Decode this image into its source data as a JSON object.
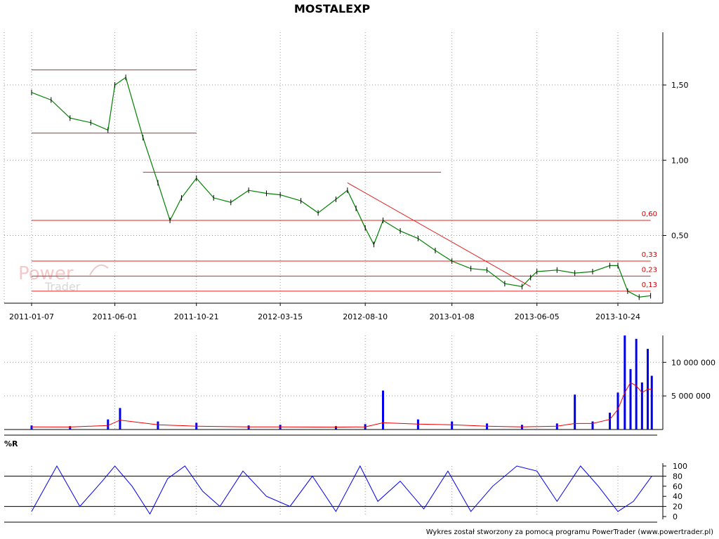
{
  "title": "MOSTALEXP",
  "watermark": {
    "line1": "Power",
    "line2": "Trader"
  },
  "footer": "Wykres został stworzony za pomocą programu PowerTrader (www.powertrader.pl)",
  "colors": {
    "price_line": "#000000",
    "price_ma": "#008000",
    "level_line": "#e02020",
    "volume_bar": "#0000ee",
    "volume_ma": "#ee0000",
    "oscillator": "#0000ee",
    "grid": "#999999"
  },
  "chart_data": [
    {
      "type": "line",
      "name_panel": "price",
      "title": "MOSTALEXP",
      "x_tick_labels": [
        "2011-01-07",
        "2011-06-01",
        "2011-10-21",
        "2012-03-15",
        "2012-08-10",
        "2013-01-08",
        "2013-06-05",
        "2013-10-24"
      ],
      "y_tick_values": [
        0.5,
        1.0,
        1.5
      ],
      "y_tick_labels": [
        "0,50",
        "1,00",
        "1,50"
      ],
      "ylim": [
        0.05,
        1.85
      ],
      "grid": true,
      "x": [
        "2011-01-07",
        "2011-02-10",
        "2011-03-15",
        "2011-04-20",
        "2011-05-20",
        "2011-06-01",
        "2011-06-20",
        "2011-07-20",
        "2011-08-15",
        "2011-09-05",
        "2011-09-25",
        "2011-10-21",
        "2011-11-20",
        "2011-12-20",
        "2012-01-20",
        "2012-02-20",
        "2012-03-15",
        "2012-04-20",
        "2012-05-20",
        "2012-06-20",
        "2012-07-10",
        "2012-07-25",
        "2012-08-10",
        "2012-08-25",
        "2012-09-10",
        "2012-10-10",
        "2012-11-10",
        "2012-12-10",
        "2013-01-08",
        "2013-02-10",
        "2013-03-10",
        "2013-04-10",
        "2013-05-10",
        "2013-05-25",
        "2013-06-05",
        "2013-07-10",
        "2013-08-10",
        "2013-09-10",
        "2013-10-10",
        "2013-10-24",
        "2013-11-10",
        "2013-11-30",
        "2013-12-20"
      ],
      "values": [
        1.45,
        1.4,
        1.28,
        1.25,
        1.2,
        1.5,
        1.55,
        1.15,
        0.85,
        0.6,
        0.75,
        0.88,
        0.75,
        0.72,
        0.8,
        0.78,
        0.77,
        0.73,
        0.65,
        0.74,
        0.8,
        0.68,
        0.55,
        0.44,
        0.6,
        0.53,
        0.48,
        0.4,
        0.33,
        0.28,
        0.27,
        0.18,
        0.16,
        0.22,
        0.26,
        0.27,
        0.25,
        0.26,
        0.3,
        0.3,
        0.13,
        0.09,
        0.1
      ],
      "levels": [
        {
          "value": 1.6,
          "from": "2011-01-07",
          "to": "2011-10-21",
          "label": ""
        },
        {
          "value": 1.18,
          "from": "2011-01-07",
          "to": "2011-10-21",
          "label": ""
        },
        {
          "value": 0.92,
          "from": "2011-07-20",
          "to": "2012-12-20",
          "label": ""
        },
        {
          "value": 0.6,
          "from": "2011-01-07",
          "to": "2013-12-20",
          "label": "0,60"
        },
        {
          "value": 0.33,
          "from": "2011-01-07",
          "to": "2013-12-20",
          "label": "0,33"
        },
        {
          "value": 0.23,
          "from": "2011-01-07",
          "to": "2013-12-20",
          "label": "0,23"
        },
        {
          "value": 0.13,
          "from": "2011-01-07",
          "to": "2013-12-20",
          "label": "0,13"
        }
      ],
      "trendline": {
        "from": [
          "2012-07-10",
          0.85
        ],
        "to": [
          "2013-05-25",
          0.16
        ]
      }
    },
    {
      "type": "bar",
      "name_panel": "volume",
      "y_tick_values": [
        5000000,
        10000000
      ],
      "y_tick_labels": [
        "5 000 000",
        "10 000 000"
      ],
      "ylim": [
        0,
        14000000
      ],
      "grid": true,
      "x": [
        "2011-01-07",
        "2011-03-15",
        "2011-05-20",
        "2011-06-10",
        "2011-08-15",
        "2011-10-21",
        "2012-01-20",
        "2012-03-15",
        "2012-06-20",
        "2012-08-10",
        "2012-09-10",
        "2012-11-10",
        "2013-01-08",
        "2013-03-10",
        "2013-05-10",
        "2013-07-10",
        "2013-08-10",
        "2013-09-10",
        "2013-10-10",
        "2013-10-24",
        "2013-11-05",
        "2013-11-15",
        "2013-11-25",
        "2013-12-05",
        "2013-12-15",
        "2013-12-22"
      ],
      "values": [
        600000,
        500000,
        1500000,
        3200000,
        1200000,
        1000000,
        600000,
        700000,
        500000,
        800000,
        5800000,
        1500000,
        1200000,
        900000,
        700000,
        900000,
        5200000,
        1200000,
        2500000,
        5500000,
        14000000,
        9000000,
        13500000,
        7000000,
        12000000,
        8000000
      ],
      "volume_ma": [
        400000,
        380000,
        600000,
        1400000,
        700000,
        500000,
        400000,
        400000,
        350000,
        400000,
        1000000,
        800000,
        700000,
        500000,
        400000,
        500000,
        900000,
        900000,
        1500000,
        3000000,
        5500000,
        7000000,
        6500000,
        5500000,
        6000000,
        6000000
      ]
    },
    {
      "type": "line",
      "name_panel": "oscillator",
      "title": "%R",
      "y_tick_values": [
        0,
        20,
        40,
        60,
        80,
        100
      ],
      "y_tick_labels": [
        "0",
        "20",
        "40",
        "60",
        "80",
        "100"
      ],
      "ylim": [
        0,
        100
      ],
      "reference_lines": [
        20,
        80
      ],
      "grid": true,
      "x": [
        "2011-01-07",
        "2011-02-20",
        "2011-04-01",
        "2011-05-10",
        "2011-06-01",
        "2011-07-01",
        "2011-08-01",
        "2011-09-01",
        "2011-10-01",
        "2011-11-01",
        "2011-12-01",
        "2012-01-10",
        "2012-02-20",
        "2012-04-01",
        "2012-05-10",
        "2012-06-20",
        "2012-08-01",
        "2012-09-01",
        "2012-10-10",
        "2012-11-20",
        "2013-01-01",
        "2013-02-10",
        "2013-03-20",
        "2013-05-01",
        "2013-06-05",
        "2013-07-10",
        "2013-08-20",
        "2013-09-20",
        "2013-10-24",
        "2013-11-20",
        "2013-12-22"
      ],
      "values": [
        10,
        100,
        20,
        70,
        100,
        60,
        5,
        75,
        100,
        50,
        20,
        90,
        40,
        20,
        80,
        10,
        100,
        30,
        70,
        15,
        90,
        10,
        60,
        100,
        90,
        30,
        100,
        60,
        10,
        30,
        80
      ]
    }
  ]
}
